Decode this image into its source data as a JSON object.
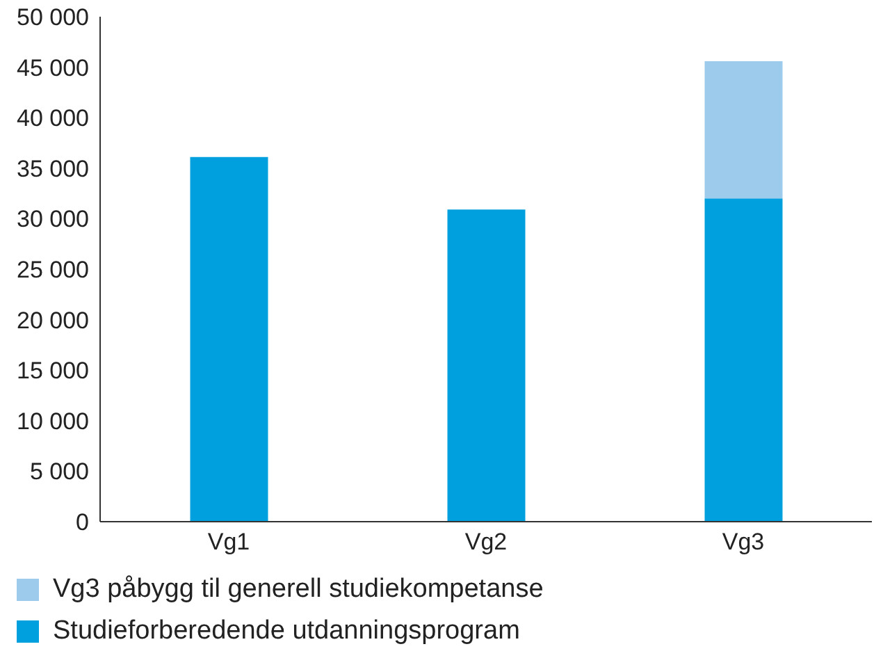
{
  "chart_data": {
    "type": "bar",
    "stacked": true,
    "categories": [
      "Vg1",
      "Vg2",
      "Vg3"
    ],
    "series": [
      {
        "name": "Studieforberedende utdanningsprogram",
        "color": "#00a0df",
        "values": [
          36100,
          30900,
          32000
        ]
      },
      {
        "name": "Vg3 påbygg til generell studiekompetanse",
        "color": "#9dcbec",
        "values": [
          null,
          null,
          13600
        ]
      }
    ],
    "ylim": [
      0,
      50000
    ],
    "yticks": [
      0,
      {
        "value": 5000,
        "label": "5 000"
      },
      {
        "value": 10000,
        "label": "10 000"
      },
      {
        "value": 15000,
        "label": "15 000"
      },
      {
        "value": 20000,
        "label": "20 000"
      },
      {
        "value": 25000,
        "label": "25 000"
      },
      {
        "value": 30000,
        "label": "30 000"
      },
      {
        "value": 35000,
        "label": "35 000"
      },
      {
        "value": 40000,
        "label": "40 000"
      },
      {
        "value": 45000,
        "label": "45 000"
      },
      {
        "value": 50000,
        "label": "50 000"
      }
    ],
    "grid": false,
    "legend": "bottom"
  }
}
